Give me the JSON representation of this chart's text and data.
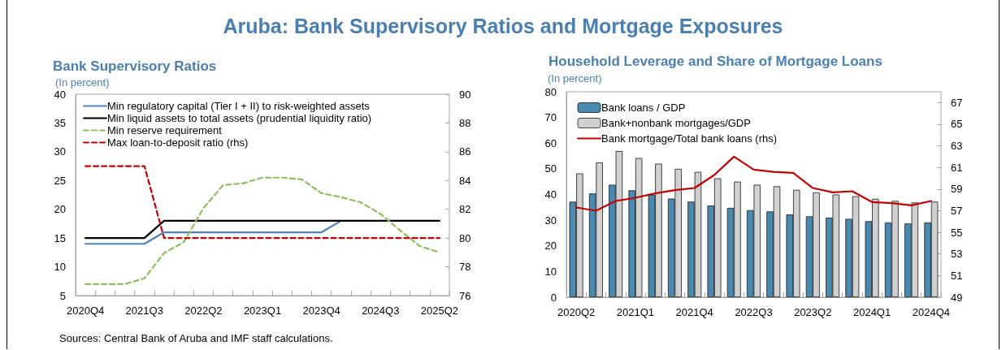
{
  "chart_data": [
    {
      "type": "line",
      "title": "Aruba: Bank Supervisory Ratios and Mortgage Exposures",
      "subtitle": "Bank Supervisory Ratios",
      "ylabel": "(In percent)",
      "categories": [
        "2020Q4",
        null,
        null,
        "2021Q3",
        null,
        null,
        "2022Q2",
        null,
        null,
        "2023Q1",
        null,
        null,
        "2023Q4",
        null,
        null,
        "2024Q3",
        null,
        null,
        "2025Q2"
      ],
      "series": [
        {
          "name": "Min regulatory capital (Tier I + II) to risk-weighted assets",
          "color": "#4f81bd",
          "values": [
            14,
            14,
            14,
            14,
            16,
            16,
            16,
            16,
            16,
            16,
            16,
            16,
            16,
            18,
            null,
            null,
            null,
            null,
            null
          ]
        },
        {
          "name": "Min liquid assets to total assets (prudential liquidity ratio)",
          "color": "#000000",
          "values": [
            15,
            15,
            15,
            15,
            18,
            18,
            18,
            18,
            18,
            18,
            18,
            18,
            18,
            18,
            18,
            18,
            18,
            18,
            18
          ]
        },
        {
          "name": "Min reserve requirement",
          "color": "#8cbf5e",
          "line_style": "dashed",
          "values": [
            7,
            7,
            7,
            8,
            12.4,
            14.3,
            20.2,
            24.2,
            24.5,
            25.5,
            25.5,
            25.2,
            22.8,
            22.1,
            21.2,
            19.2,
            16.3,
            13.6,
            12.5
          ]
        },
        {
          "name": "Max loan-to-deposit ratio (rhs)",
          "color": "#c00000",
          "line_style": "dashed",
          "axis": "y2",
          "values": [
            85,
            85,
            85,
            85,
            80,
            80,
            80,
            80,
            80,
            80,
            80,
            80,
            80,
            80,
            80,
            80,
            80,
            80,
            80
          ]
        }
      ],
      "ylim": [
        5,
        40
      ],
      "yticks": [
        5,
        10,
        15,
        20,
        25,
        30,
        35,
        40
      ],
      "y2lim": [
        76,
        90
      ],
      "y2ticks": [
        76,
        78,
        80,
        82,
        84,
        86,
        88,
        90
      ],
      "grid": false,
      "legend": "top left",
      "annotations": [
        "Sources: Central Bank of Aruba and IMF staff calculations."
      ]
    },
    {
      "type": "bar",
      "title": "Household Leverage and Share of Mortgage Loans",
      "ylabel": "(In percent)",
      "categories": [
        "2020Q2",
        null,
        null,
        "2021Q1",
        null,
        null,
        "2021Q4",
        null,
        null,
        "2022Q3",
        null,
        null,
        "2023Q2",
        null,
        null,
        "2024Q1",
        null,
        null,
        "2024Q4"
      ],
      "series": [
        {
          "name": "Bank loans / GDP",
          "color": "#4a8ab0",
          "values": [
            37.2,
            40.4,
            43.8,
            41.6,
            39.9,
            38.4,
            37.2,
            35.7,
            34.8,
            33.9,
            33.4,
            32.2,
            31.5,
            31.0,
            30.5,
            29.6,
            29.1,
            28.7,
            29.1
          ]
        },
        {
          "name": "Bank+nonbank mortgages/GDP",
          "color": "#d0d0d0",
          "values": [
            48.2,
            52.5,
            56.9,
            54.2,
            52,
            50,
            48.8,
            46.3,
            45,
            43.8,
            43.2,
            41.8,
            40.8,
            40,
            39.3,
            38.3,
            37.5,
            36.9,
            37.2
          ]
        },
        {
          "name": "Bank mortgage/Total bank loans (rhs)",
          "color": "#c00000",
          "type": "line",
          "axis": "y2",
          "values": [
            57.3,
            57.0,
            57.9,
            58.2,
            58.6,
            58.9,
            59.1,
            60.3,
            62.0,
            60.8,
            60.6,
            60.5,
            59.1,
            58.7,
            58.8,
            57.8,
            57.7,
            57.5,
            57.9
          ]
        }
      ],
      "ylim": [
        0,
        80
      ],
      "yticks": [
        0,
        10,
        20,
        30,
        40,
        50,
        60,
        70,
        80
      ],
      "y2lim": [
        49,
        68
      ],
      "y2ticks": [
        49,
        51,
        53,
        55,
        57,
        59,
        61,
        63,
        65,
        67
      ],
      "grid": false,
      "legend": "top left"
    }
  ]
}
